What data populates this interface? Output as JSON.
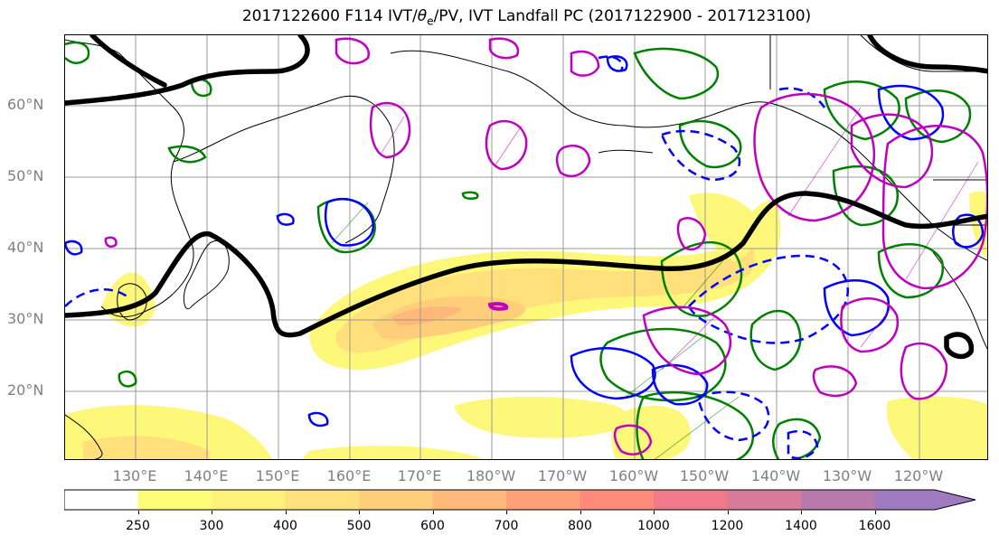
{
  "title_main": "2017122600 F114 IVT/",
  "title_theta": "θ",
  "title_sub": "e",
  "title_rest": "/PV, IVT Landfall PC (2017122900 - 2017123100)",
  "lat_labels": [
    "60°N",
    "50°N",
    "40°N",
    "30°N",
    "20°N"
  ],
  "lon_labels": [
    "130°E",
    "140°E",
    "150°E",
    "160°E",
    "170°E",
    "180°W",
    "170°W",
    "160°W",
    "150°W",
    "140°W",
    "130°W",
    "120°W"
  ],
  "colorbar": {
    "levels": [
      "250",
      "300",
      "400",
      "500",
      "600",
      "700",
      "800",
      "1000",
      "1200",
      "1400",
      "1600"
    ],
    "colors": [
      "#ffffff",
      "#fdfd78",
      "#fff07a",
      "#ffe07a",
      "#ffce7a",
      "#ffb87a",
      "#ffa07a",
      "#ff8a7a",
      "#f07a8a",
      "#d87a9a",
      "#b87aaa",
      "#a07ac0"
    ]
  },
  "legend_colors": {
    "pv_contour": "#000000",
    "green_contour": "#008000",
    "blue_contour": "#0000ff",
    "magenta_contour": "#c000c0"
  }
}
